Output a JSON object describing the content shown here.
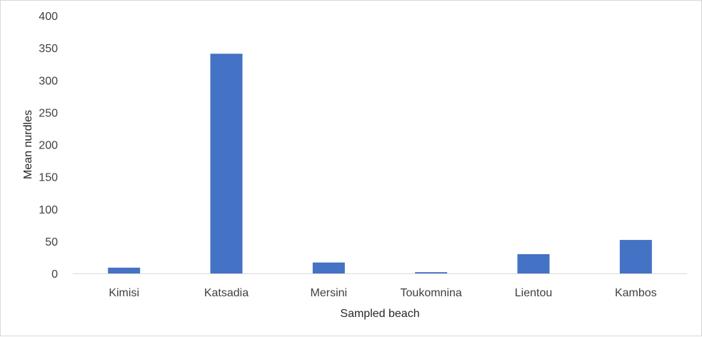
{
  "chart_data": {
    "type": "bar",
    "title": "",
    "xlabel": "Sampled beach",
    "ylabel": "Mean nurdles",
    "categories": [
      "Kimisi",
      "Katsadia",
      "Mersini",
      "Toukomnina",
      "Lientou",
      "Kambos"
    ],
    "values": [
      9,
      341,
      17,
      2,
      30,
      52
    ],
    "ylim": [
      0,
      400
    ],
    "yticks": [
      0,
      50,
      100,
      150,
      200,
      250,
      300,
      350,
      400
    ],
    "grid": false,
    "legend": "none",
    "bar_color": "#4472c4",
    "axis_color": "#d9d9d9"
  }
}
